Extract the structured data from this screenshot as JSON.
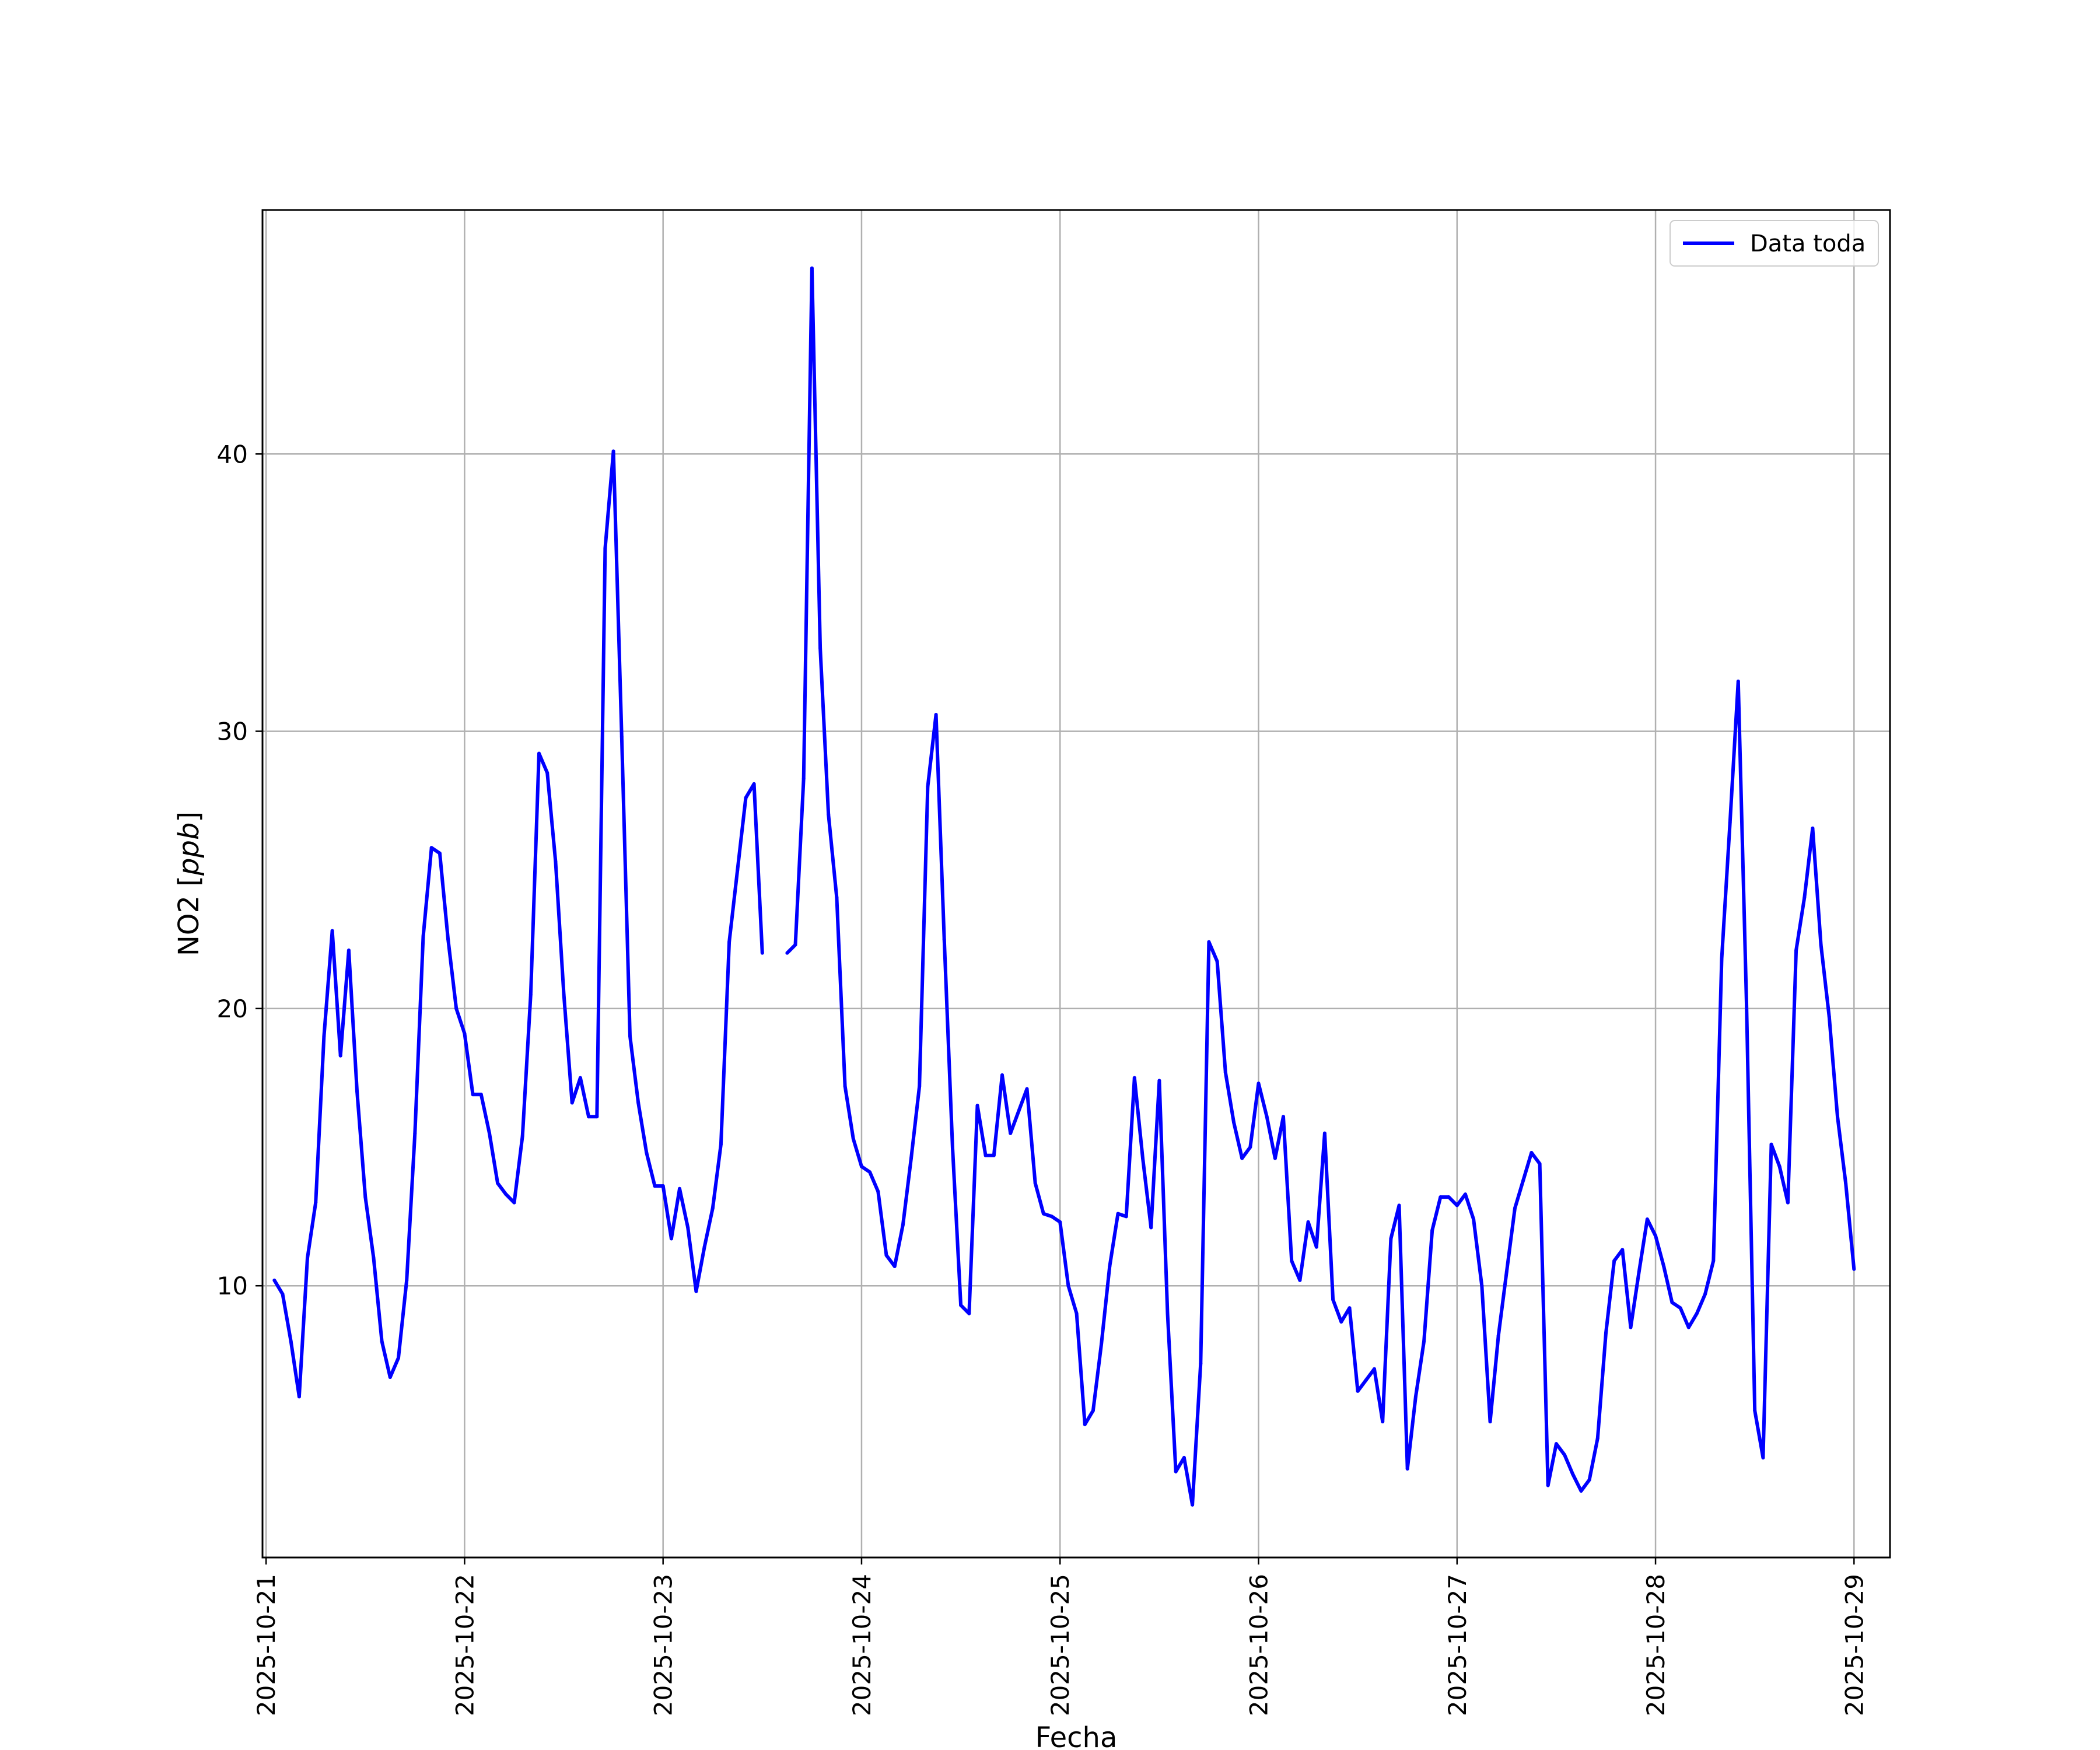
{
  "chart_data": {
    "type": "line",
    "xlabel": "Fecha",
    "ylabel": "NO2 [ppb]",
    "ylabel_parts": {
      "prefix": "NO2 [",
      "unit": "ppb",
      "suffix": "]"
    },
    "x_range": [
      "2025-10-20T23:34",
      "2025-10-29T04:21"
    ],
    "ylim": [
      0.2,
      48.8
    ],
    "x_ticks": [
      "2025-10-21",
      "2025-10-22",
      "2025-10-23",
      "2025-10-24",
      "2025-10-25",
      "2025-10-26",
      "2025-10-27",
      "2025-10-28",
      "2025-10-29"
    ],
    "y_ticks": [
      "10",
      "20",
      "30",
      "40"
    ],
    "grid": true,
    "legend_position": "top-right",
    "colors": {
      "line": "#0000ff",
      "grid": "#b0b0b0",
      "frame": "#000000"
    },
    "series": [
      {
        "name": "Data toda",
        "points": [
          [
            "2025-10-21T01:00",
            10.2
          ],
          [
            "2025-10-21T02:00",
            9.7
          ],
          [
            "2025-10-21T03:00",
            8.0
          ],
          [
            "2025-10-21T04:00",
            6.0
          ],
          [
            "2025-10-21T05:00",
            11.0
          ],
          [
            "2025-10-21T06:00",
            13.0
          ],
          [
            "2025-10-21T07:00",
            19.0
          ],
          [
            "2025-10-21T08:00",
            22.8
          ],
          [
            "2025-10-21T09:00",
            18.3
          ],
          [
            "2025-10-21T10:00",
            22.1
          ],
          [
            "2025-10-21T11:00",
            17.0
          ],
          [
            "2025-10-21T12:00",
            13.2
          ],
          [
            "2025-10-21T13:00",
            11.0
          ],
          [
            "2025-10-21T14:00",
            8.0
          ],
          [
            "2025-10-21T15:00",
            6.7
          ],
          [
            "2025-10-21T16:00",
            7.4
          ],
          [
            "2025-10-21T17:00",
            10.2
          ],
          [
            "2025-10-21T18:00",
            15.5
          ],
          [
            "2025-10-21T19:00",
            22.6
          ],
          [
            "2025-10-21T20:00",
            25.8
          ],
          [
            "2025-10-21T21:00",
            25.6
          ],
          [
            "2025-10-21T22:00",
            22.5
          ],
          [
            "2025-10-21T23:00",
            20.0
          ],
          [
            "2025-10-22T00:00",
            19.1
          ],
          [
            "2025-10-22T01:00",
            16.9
          ],
          [
            "2025-10-22T02:00",
            16.9
          ],
          [
            "2025-10-22T03:00",
            15.5
          ],
          [
            "2025-10-22T04:00",
            13.7
          ],
          [
            "2025-10-22T05:00",
            13.3
          ],
          [
            "2025-10-22T06:00",
            13.0
          ],
          [
            "2025-10-22T07:00",
            15.4
          ],
          [
            "2025-10-22T08:00",
            20.5
          ],
          [
            "2025-10-22T09:00",
            29.2
          ],
          [
            "2025-10-22T10:00",
            28.5
          ],
          [
            "2025-10-22T11:00",
            25.3
          ],
          [
            "2025-10-22T12:00",
            20.5
          ],
          [
            "2025-10-22T13:00",
            16.6
          ],
          [
            "2025-10-22T14:00",
            17.5
          ],
          [
            "2025-10-22T15:00",
            16.1
          ],
          [
            "2025-10-22T16:00",
            16.1
          ],
          [
            "2025-10-22T17:00",
            36.6
          ],
          [
            "2025-10-22T18:00",
            40.1
          ],
          [
            "2025-10-22T19:00",
            29.8
          ],
          [
            "2025-10-22T20:00",
            19.0
          ],
          [
            "2025-10-22T21:00",
            16.6
          ],
          [
            "2025-10-22T22:00",
            14.8
          ],
          [
            "2025-10-22T23:00",
            13.6
          ],
          [
            "2025-10-23T00:00",
            13.6
          ],
          [
            "2025-10-23T01:00",
            11.7
          ],
          [
            "2025-10-23T02:00",
            13.5
          ],
          [
            "2025-10-23T03:00",
            12.1
          ],
          [
            "2025-10-23T04:00",
            9.8
          ],
          [
            "2025-10-23T05:00",
            11.4
          ],
          [
            "2025-10-23T06:00",
            12.8
          ],
          [
            "2025-10-23T07:00",
            15.1
          ],
          [
            "2025-10-23T08:00",
            22.4
          ],
          [
            "2025-10-23T09:00",
            25.0
          ],
          [
            "2025-10-23T10:00",
            27.6
          ],
          [
            "2025-10-23T11:00",
            28.1
          ],
          [
            "2025-10-23T12:00",
            22.0
          ],
          null,
          [
            "2025-10-23T15:00",
            22.0
          ],
          [
            "2025-10-23T16:00",
            22.3
          ],
          [
            "2025-10-23T17:00",
            28.3
          ],
          [
            "2025-10-23T18:00",
            46.7
          ],
          [
            "2025-10-23T19:00",
            33.0
          ],
          [
            "2025-10-23T20:00",
            27.0
          ],
          [
            "2025-10-23T21:00",
            24.0
          ],
          [
            "2025-10-23T22:00",
            17.2
          ],
          [
            "2025-10-23T23:00",
            15.3
          ],
          [
            "2025-10-24T00:00",
            14.3
          ],
          [
            "2025-10-24T01:00",
            14.1
          ],
          [
            "2025-10-24T02:00",
            13.4
          ],
          [
            "2025-10-24T03:00",
            11.1
          ],
          [
            "2025-10-24T04:00",
            10.7
          ],
          [
            "2025-10-24T05:00",
            12.2
          ],
          [
            "2025-10-24T06:00",
            14.6
          ],
          [
            "2025-10-24T07:00",
            17.2
          ],
          [
            "2025-10-24T08:00",
            28.0
          ],
          [
            "2025-10-24T09:00",
            30.6
          ],
          [
            "2025-10-24T10:00",
            22.5
          ],
          [
            "2025-10-24T11:00",
            15.0
          ],
          [
            "2025-10-24T12:00",
            9.3
          ],
          [
            "2025-10-24T13:00",
            9.0
          ],
          [
            "2025-10-24T14:00",
            16.5
          ],
          [
            "2025-10-24T15:00",
            14.7
          ],
          [
            "2025-10-24T16:00",
            14.7
          ],
          [
            "2025-10-24T17:00",
            17.6
          ],
          [
            "2025-10-24T18:00",
            15.5
          ],
          [
            "2025-10-24T19:00",
            16.3
          ],
          [
            "2025-10-24T20:00",
            17.1
          ],
          [
            "2025-10-24T21:00",
            13.7
          ],
          [
            "2025-10-24T22:00",
            12.6
          ],
          [
            "2025-10-24T23:00",
            12.5
          ],
          [
            "2025-10-25T00:00",
            12.3
          ],
          [
            "2025-10-25T01:00",
            10.0
          ],
          [
            "2025-10-25T02:00",
            9.0
          ],
          [
            "2025-10-25T03:00",
            5.0
          ],
          [
            "2025-10-25T04:00",
            5.5
          ],
          [
            "2025-10-25T05:00",
            7.9
          ],
          [
            "2025-10-25T06:00",
            10.7
          ],
          [
            "2025-10-25T07:00",
            12.6
          ],
          [
            "2025-10-25T08:00",
            12.5
          ],
          [
            "2025-10-25T09:00",
            17.5
          ],
          [
            "2025-10-25T10:00",
            14.6
          ],
          [
            "2025-10-25T11:00",
            12.1
          ],
          [
            "2025-10-25T12:00",
            17.4
          ],
          [
            "2025-10-25T13:00",
            9.0
          ],
          [
            "2025-10-25T14:00",
            3.3
          ],
          [
            "2025-10-25T15:00",
            3.8
          ],
          [
            "2025-10-25T16:00",
            2.1
          ],
          [
            "2025-10-25T17:00",
            7.2
          ],
          [
            "2025-10-25T18:00",
            22.4
          ],
          [
            "2025-10-25T19:00",
            21.7
          ],
          [
            "2025-10-25T20:00",
            17.7
          ],
          [
            "2025-10-25T21:00",
            15.9
          ],
          [
            "2025-10-25T22:00",
            14.6
          ],
          [
            "2025-10-25T23:00",
            15.0
          ],
          [
            "2025-10-26T00:00",
            17.3
          ],
          [
            "2025-10-26T01:00",
            16.1
          ],
          [
            "2025-10-26T02:00",
            14.6
          ],
          [
            "2025-10-26T03:00",
            16.1
          ],
          [
            "2025-10-26T04:00",
            10.9
          ],
          [
            "2025-10-26T05:00",
            10.2
          ],
          [
            "2025-10-26T06:00",
            12.3
          ],
          [
            "2025-10-26T07:00",
            11.4
          ],
          [
            "2025-10-26T08:00",
            15.5
          ],
          [
            "2025-10-26T09:00",
            9.5
          ],
          [
            "2025-10-26T10:00",
            8.7
          ],
          [
            "2025-10-26T11:00",
            9.2
          ],
          [
            "2025-10-26T12:00",
            6.2
          ],
          [
            "2025-10-26T13:00",
            6.6
          ],
          [
            "2025-10-26T14:00",
            7.0
          ],
          [
            "2025-10-26T15:00",
            5.1
          ],
          [
            "2025-10-26T16:00",
            11.7
          ],
          [
            "2025-10-26T17:00",
            12.9
          ],
          [
            "2025-10-26T18:00",
            3.4
          ],
          [
            "2025-10-26T19:00",
            6.0
          ],
          [
            "2025-10-26T20:00",
            8.0
          ],
          [
            "2025-10-26T21:00",
            12.0
          ],
          [
            "2025-10-26T22:00",
            13.2
          ],
          [
            "2025-10-26T23:00",
            13.2
          ],
          [
            "2025-10-27T00:00",
            12.9
          ],
          [
            "2025-10-27T01:00",
            13.3
          ],
          [
            "2025-10-27T02:00",
            12.4
          ],
          [
            "2025-10-27T03:00",
            10.0
          ],
          [
            "2025-10-27T04:00",
            5.1
          ],
          [
            "2025-10-27T05:00",
            8.2
          ],
          [
            "2025-10-27T06:00",
            10.5
          ],
          [
            "2025-10-27T07:00",
            12.8
          ],
          [
            "2025-10-27T08:00",
            13.8
          ],
          [
            "2025-10-27T09:00",
            14.8
          ],
          [
            "2025-10-27T10:00",
            14.4
          ],
          [
            "2025-10-27T11:00",
            2.8
          ],
          [
            "2025-10-27T12:00",
            4.3
          ],
          [
            "2025-10-27T13:00",
            3.9
          ],
          [
            "2025-10-27T14:00",
            3.2
          ],
          [
            "2025-10-27T15:00",
            2.6
          ],
          [
            "2025-10-27T16:00",
            3.0
          ],
          [
            "2025-10-27T17:00",
            4.5
          ],
          [
            "2025-10-27T18:00",
            8.3
          ],
          [
            "2025-10-27T19:00",
            10.9
          ],
          [
            "2025-10-27T20:00",
            11.3
          ],
          [
            "2025-10-27T21:00",
            8.5
          ],
          [
            "2025-10-27T22:00",
            10.5
          ],
          [
            "2025-10-27T23:00",
            12.4
          ],
          [
            "2025-10-28T00:00",
            11.8
          ],
          [
            "2025-10-28T01:00",
            10.7
          ],
          [
            "2025-10-28T02:00",
            9.4
          ],
          [
            "2025-10-28T03:00",
            9.2
          ],
          [
            "2025-10-28T04:00",
            8.5
          ],
          [
            "2025-10-28T05:00",
            9.0
          ],
          [
            "2025-10-28T06:00",
            9.7
          ],
          [
            "2025-10-28T07:00",
            10.9
          ],
          [
            "2025-10-28T08:00",
            21.8
          ],
          [
            "2025-10-28T09:00",
            26.7
          ],
          [
            "2025-10-28T10:00",
            31.8
          ],
          [
            "2025-10-28T11:00",
            20.2
          ],
          [
            "2025-10-28T12:00",
            5.5
          ],
          [
            "2025-10-28T13:00",
            3.8
          ],
          [
            "2025-10-28T14:00",
            15.1
          ],
          [
            "2025-10-28T15:00",
            14.3
          ],
          [
            "2025-10-28T16:00",
            13.0
          ],
          [
            "2025-10-28T17:00",
            22.1
          ],
          [
            "2025-10-28T18:00",
            24.0
          ],
          [
            "2025-10-28T19:00",
            26.5
          ],
          [
            "2025-10-28T20:00",
            22.3
          ],
          [
            "2025-10-28T21:00",
            19.7
          ],
          [
            "2025-10-28T22:00",
            16.1
          ],
          [
            "2025-10-28T23:00",
            13.7
          ],
          [
            "2025-10-29T00:00",
            10.6
          ]
        ]
      }
    ]
  }
}
